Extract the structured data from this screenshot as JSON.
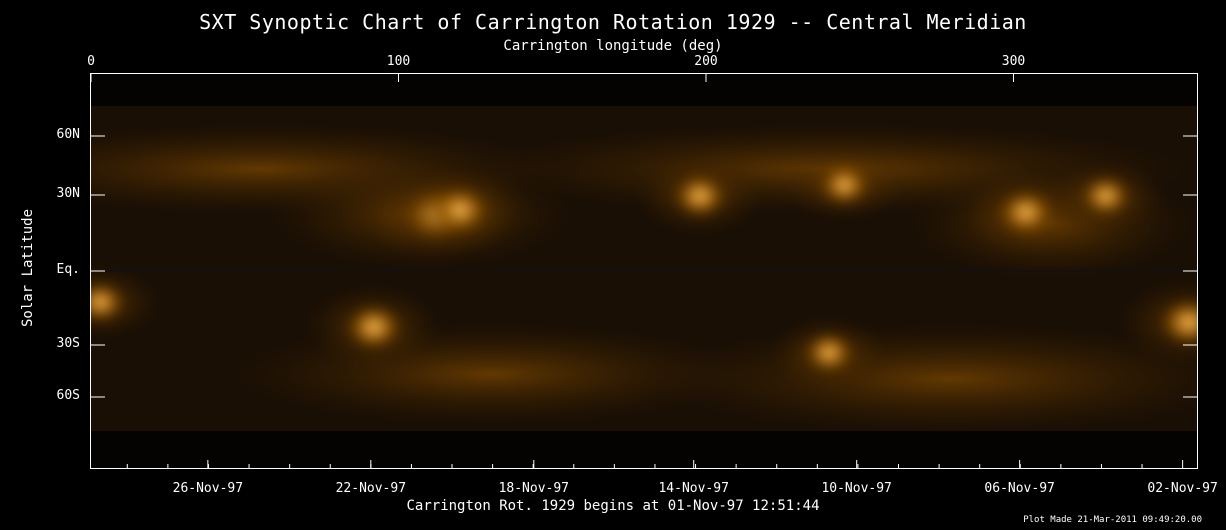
{
  "chart_data": {
    "type": "heatmap",
    "title": "SXT Synoptic Chart of Carrington Rotation 1929 -- Central Meridian",
    "top_axis": {
      "label": "Carrington longitude (deg)",
      "range": [
        0,
        360
      ],
      "ticks": [
        {
          "value": 0,
          "label": "0"
        },
        {
          "value": 100,
          "label": "100"
        },
        {
          "value": 200,
          "label": "200"
        },
        {
          "value": 300,
          "label": "300"
        }
      ]
    },
    "left_axis": {
      "label": "Solar Latitude",
      "ticks": [
        {
          "value": 60,
          "label": "60N"
        },
        {
          "value": 30,
          "label": "30N"
        },
        {
          "value": 0,
          "label": "Eq."
        },
        {
          "value": -30,
          "label": "30S"
        },
        {
          "value": -60,
          "label": "60S"
        }
      ]
    },
    "bottom_axis": {
      "label": "Carrington Rot. 1929 begins at 01-Nov-97 12:51:44",
      "ticks": [
        {
          "longitude": 38,
          "label": "26-Nov-97"
        },
        {
          "longitude": 91,
          "label": "22-Nov-97"
        },
        {
          "longitude": 144,
          "label": "18-Nov-97"
        },
        {
          "longitude": 196,
          "label": "14-Nov-97"
        },
        {
          "longitude": 249,
          "label": "10-Nov-97"
        },
        {
          "longitude": 302,
          "label": "06-Nov-97"
        },
        {
          "longitude": 355,
          "label": "02-Nov-97"
        }
      ]
    },
    "colormap": {
      "dark": "#000000",
      "mid": "#8a5000",
      "bright": "#ffd27a"
    },
    "bright_regions": [
      {
        "lon": 112,
        "lat": 22,
        "intensity": 1.0
      },
      {
        "lon": 120,
        "lat": 24,
        "intensity": 0.9
      },
      {
        "lon": 198,
        "lat": 30,
        "intensity": 0.8
      },
      {
        "lon": 245,
        "lat": 35,
        "intensity": 0.7
      },
      {
        "lon": 304,
        "lat": 23,
        "intensity": 0.85
      },
      {
        "lon": 330,
        "lat": 30,
        "intensity": 0.7
      },
      {
        "lon": 92,
        "lat": -22,
        "intensity": 0.9
      },
      {
        "lon": 240,
        "lat": -33,
        "intensity": 0.7
      },
      {
        "lon": 357,
        "lat": -20,
        "intensity": 0.95
      },
      {
        "lon": 3,
        "lat": -12,
        "intensity": 0.7
      }
    ]
  },
  "footer": {
    "plot_made": "Plot Made 21-Mar-2011 09:49:20.00"
  }
}
